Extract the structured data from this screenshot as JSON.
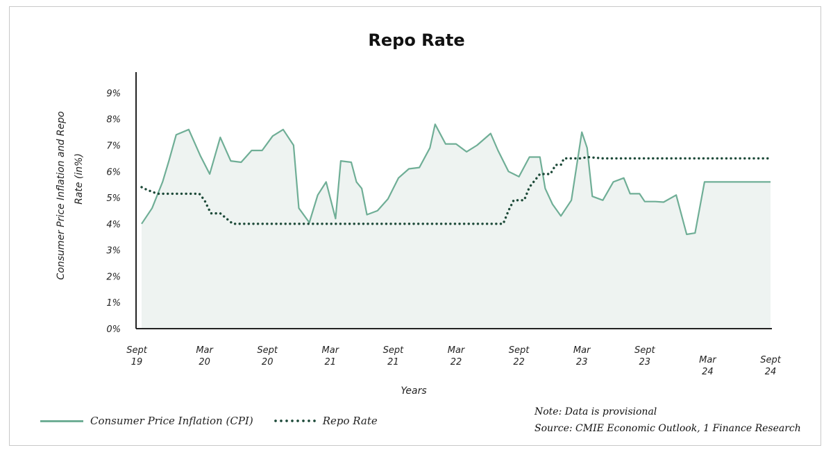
{
  "title": "Repo Rate",
  "note": "Note: Data is provisional",
  "source": "Source: CMIE Economic Outlook, 1 Finance Research",
  "colors": {
    "cpi_line": "#6fae96",
    "cpi_fill": "#eef3f1",
    "repo_dots": "#1d4a39",
    "axis": "#222222"
  },
  "chart_data": {
    "type": "line",
    "title": "Repo Rate",
    "xlabel": "Years",
    "ylabel": "Consumer Price Inflation and Repo Rate (in%)",
    "ylim": [
      0,
      9.5
    ],
    "y_ticks": [
      "0%",
      "1%",
      "2%",
      "3%",
      "4%",
      "5%",
      "6%",
      "7%",
      "8%",
      "9%"
    ],
    "x_range": [
      0,
      60
    ],
    "x_ticks": [
      {
        "x": 0,
        "line1": "Sept",
        "line2": "19",
        "row": 1
      },
      {
        "x": 6,
        "line1": "Mar",
        "line2": "20",
        "row": 1
      },
      {
        "x": 12,
        "line1": "Sept",
        "line2": "20",
        "row": 1
      },
      {
        "x": 18,
        "line1": "Mar",
        "line2": "21",
        "row": 1
      },
      {
        "x": 24,
        "line1": "Sept",
        "line2": "21",
        "row": 1
      },
      {
        "x": 30,
        "line1": "Mar",
        "line2": "22",
        "row": 1
      },
      {
        "x": 36,
        "line1": "Sept",
        "line2": "22",
        "row": 1
      },
      {
        "x": 42,
        "line1": "Mar",
        "line2": "23",
        "row": 1
      },
      {
        "x": 48,
        "line1": "Sept",
        "line2": "23",
        "row": 1
      },
      {
        "x": 54,
        "line1": "Mar",
        "line2": "24",
        "row": 2
      },
      {
        "x": 60,
        "line1": "Sept",
        "line2": "24",
        "row": 2
      }
    ],
    "legend_position": "bottom-left",
    "grid": false,
    "series": [
      {
        "name": "Consumer Price Inflation (CPI)",
        "style": "solid-area",
        "x": [
          0,
          1,
          2,
          2.6,
          3.3,
          4.5,
          5.6,
          6.5,
          7.5,
          8.5,
          9.5,
          10.5,
          11.5,
          12.5,
          13.5,
          14.5,
          15,
          16,
          16.8,
          17.6,
          18.5,
          19,
          20,
          20.5,
          21,
          21.5,
          22.5,
          23.5,
          24.5,
          25.5,
          26.5,
          27.5,
          28,
          29,
          30,
          31,
          32,
          33.3,
          34,
          35,
          35.5,
          36,
          37,
          38,
          38.5,
          39.2,
          40,
          41,
          42,
          42.5,
          43,
          44,
          45,
          46,
          46.6,
          47.5,
          48,
          49,
          49.8,
          51,
          52,
          52.8,
          53.7,
          54.6,
          55.6,
          56.5,
          57.6,
          58.5,
          59.2,
          60
        ],
        "y": [
          4.0,
          4.6,
          5.6,
          6.4,
          7.4,
          7.6,
          6.6,
          5.9,
          7.3,
          6.4,
          6.35,
          6.8,
          6.8,
          7.35,
          7.6,
          7.0,
          4.6,
          4.05,
          5.1,
          5.6,
          4.2,
          6.4,
          6.35,
          5.6,
          5.35,
          4.35,
          4.5,
          4.95,
          5.75,
          6.1,
          6.15,
          6.9,
          7.8,
          7.05,
          7.05,
          6.75,
          7.0,
          7.45,
          6.8,
          6.0,
          5.9,
          5.8,
          6.55,
          6.55,
          5.35,
          4.75,
          4.3,
          4.9,
          7.5,
          6.9,
          5.05,
          4.9,
          5.6,
          5.75,
          5.15,
          5.15,
          4.85,
          4.85,
          4.83,
          5.1,
          3.6,
          3.65,
          5.6,
          5.6,
          5.6,
          5.6,
          5.6,
          5.6,
          5.6,
          5.6
        ]
      },
      {
        "name": "Repo Rate",
        "style": "dotted",
        "x": [
          0,
          0.5,
          1.5,
          5.5,
          6,
          6.6,
          7.5,
          8.7,
          30,
          31.5,
          32.5,
          33,
          34,
          34.5,
          35,
          35.5,
          36,
          36.5,
          37,
          38,
          38.5,
          39,
          39.5,
          40,
          40.3,
          41,
          42,
          42.5,
          44,
          46,
          48,
          50,
          52,
          54,
          56,
          58,
          60
        ],
        "y": [
          5.4,
          5.3,
          5.15,
          5.15,
          4.9,
          4.4,
          4.4,
          4.0,
          4.0,
          4.0,
          4.0,
          4.0,
          4.0,
          4.0,
          4.5,
          4.9,
          4.9,
          4.9,
          5.4,
          5.9,
          5.9,
          5.9,
          6.25,
          6.25,
          6.5,
          6.5,
          6.5,
          6.55,
          6.5,
          6.5,
          6.5,
          6.5,
          6.5,
          6.5,
          6.5,
          6.5,
          6.5
        ]
      }
    ]
  }
}
